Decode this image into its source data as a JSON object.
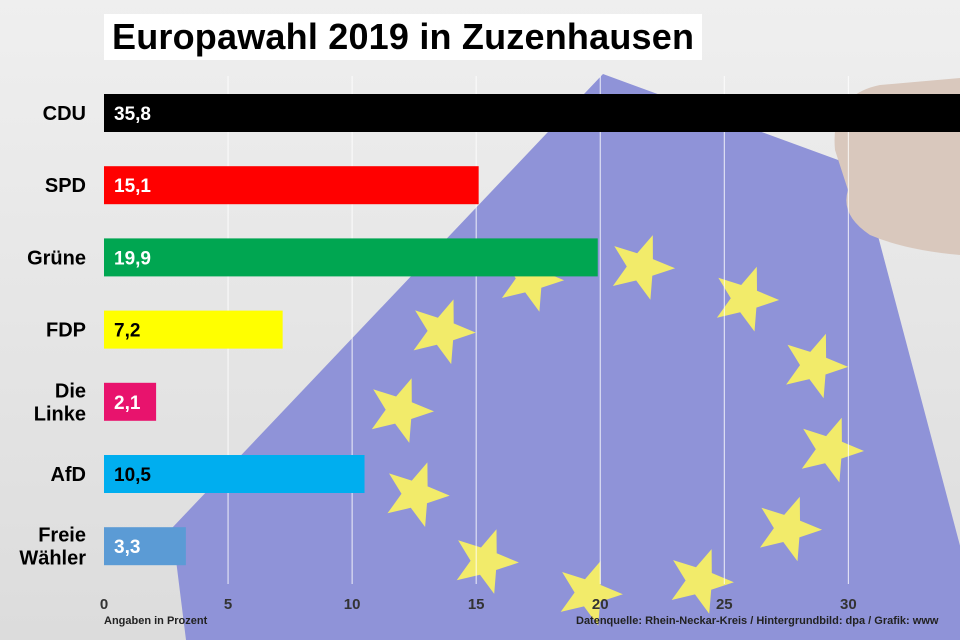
{
  "colors": {
    "background": "#e9e9e9",
    "flag_blue": "#8f93d8",
    "star_yellow": "#f2eb6a",
    "grid": "#ffffff"
  },
  "chart_data": {
    "type": "bar",
    "orientation": "horizontal",
    "title": "Europawahl 2019 in Zuzenhausen",
    "categories": [
      [
        "CDU"
      ],
      [
        "SPD"
      ],
      [
        "Grüne"
      ],
      [
        "FDP"
      ],
      [
        "Die",
        "Linke"
      ],
      [
        "AfD"
      ],
      [
        "Freie",
        "Wähler"
      ]
    ],
    "values": [
      35.8,
      15.1,
      19.9,
      7.2,
      2.1,
      10.5,
      3.3
    ],
    "value_labels": [
      "35,8",
      "15,1",
      "19,9",
      "7,2",
      "2,1",
      "10,5",
      "3,3"
    ],
    "bar_colors": [
      "#000000",
      "#ff0000",
      "#00a651",
      "#ffff00",
      "#e8136d",
      "#00aeef",
      "#5b9bd5"
    ],
    "value_label_colors": [
      "#ffffff",
      "#ffffff",
      "#ffffff",
      "#000000",
      "#ffffff",
      "#000000",
      "#ffffff"
    ],
    "x_ticks": [
      0,
      5,
      10,
      15,
      20,
      25,
      30
    ],
    "x_tick_labels": [
      "0",
      "5",
      "10",
      "15",
      "20",
      "25",
      "30"
    ],
    "xlim": [
      0,
      34.5
    ],
    "xlabel": "Angaben in Prozent",
    "grid": true,
    "source": "Datenquelle: Rhein-Neckar-Kreis  / Hintergrundbild: dpa / Grafik: www"
  }
}
